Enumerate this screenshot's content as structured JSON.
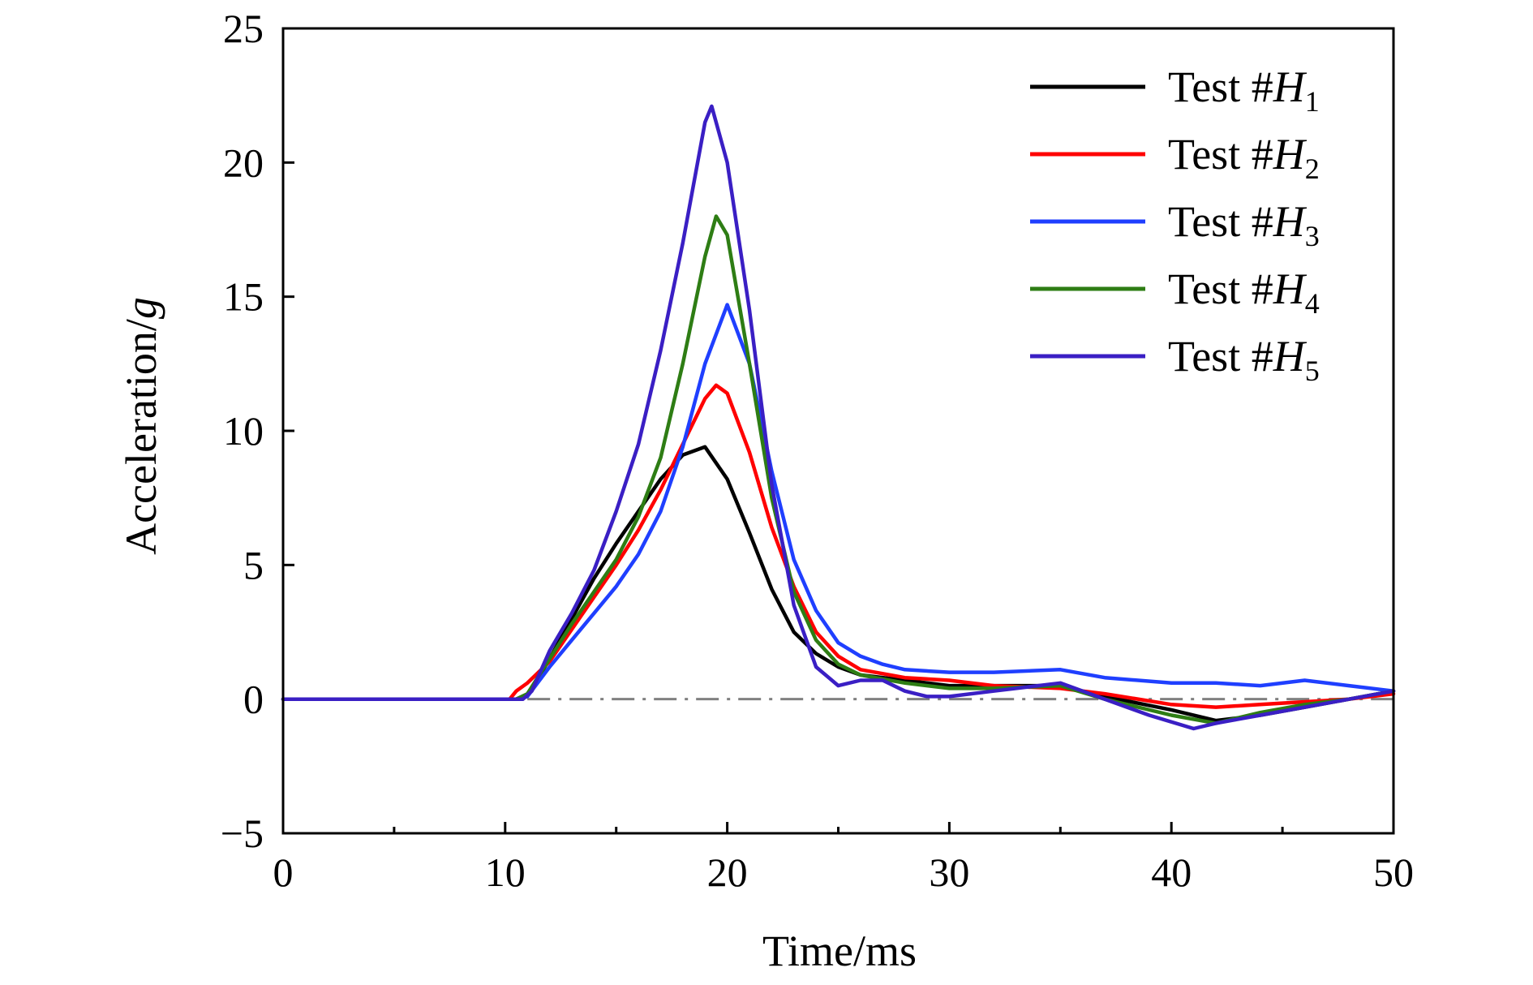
{
  "chart_data": {
    "type": "line",
    "title": "",
    "xlabel": "Time/ms",
    "ylabel_main": "Acceleration/",
    "ylabel_unit": "g",
    "xlim": [
      0,
      50
    ],
    "ylim": [
      -5,
      25
    ],
    "xticks": [
      0,
      10,
      20,
      30,
      40,
      50
    ],
    "yticks": [
      -5,
      0,
      5,
      10,
      15,
      20,
      25
    ],
    "xtick_labels": [
      "0",
      "10",
      "20",
      "30",
      "40",
      "50"
    ],
    "ytick_labels": [
      "−5",
      "0",
      "5",
      "10",
      "15",
      "20",
      "25"
    ],
    "grid": false,
    "legend_position": "top-right",
    "reference_line": {
      "y": 0,
      "style": "dash-dot",
      "color": "#808080",
      "x_start": 11
    },
    "series": [
      {
        "name_prefix": "Test #",
        "name_var": "H",
        "name_sub": "1",
        "color": "#000000",
        "x": [
          0,
          10.5,
          11,
          12,
          13,
          14,
          15,
          16,
          17,
          18,
          19,
          20,
          21,
          22,
          23,
          24,
          25,
          26,
          28,
          30,
          32,
          35,
          37,
          40,
          42,
          44,
          46,
          48,
          50
        ],
        "y": [
          0,
          0,
          0.1,
          1.5,
          3.0,
          4.5,
          5.8,
          7.0,
          8.2,
          9.1,
          9.4,
          8.2,
          6.2,
          4.1,
          2.5,
          1.7,
          1.2,
          0.9,
          0.7,
          0.5,
          0.5,
          0.5,
          0.1,
          -0.4,
          -0.8,
          -0.6,
          -0.3,
          0,
          0.3
        ]
      },
      {
        "name_prefix": "Test #",
        "name_var": "H",
        "name_sub": "2",
        "color": "#ff0000",
        "x": [
          0,
          10.2,
          10.5,
          11,
          12,
          13,
          14,
          15,
          16,
          17,
          18,
          19,
          19.5,
          20,
          21,
          22,
          23,
          24,
          25,
          26,
          28,
          30,
          32,
          35,
          37,
          40,
          42,
          44,
          46,
          48,
          50
        ],
        "y": [
          0,
          0,
          0.3,
          0.6,
          1.4,
          2.6,
          3.8,
          5.0,
          6.3,
          7.8,
          9.5,
          11.2,
          11.7,
          11.4,
          9.2,
          6.4,
          4.2,
          2.5,
          1.6,
          1.1,
          0.8,
          0.7,
          0.5,
          0.4,
          0.2,
          -0.2,
          -0.3,
          -0.2,
          -0.1,
          0,
          0.2
        ]
      },
      {
        "name_prefix": "Test #",
        "name_var": "H",
        "name_sub": "3",
        "color": "#1f3fff",
        "x": [
          0,
          10.5,
          11,
          12,
          13,
          14,
          15,
          16,
          17,
          18,
          19,
          20,
          21,
          22,
          23,
          24,
          25,
          26,
          27,
          28,
          30,
          32,
          35,
          37,
          40,
          42,
          44,
          46,
          48,
          50
        ],
        "y": [
          0,
          0,
          0.1,
          1.2,
          2.2,
          3.2,
          4.2,
          5.4,
          7.0,
          9.4,
          12.5,
          14.7,
          12.5,
          8.5,
          5.2,
          3.3,
          2.1,
          1.6,
          1.3,
          1.1,
          1.0,
          1.0,
          1.1,
          0.8,
          0.6,
          0.6,
          0.5,
          0.7,
          0.5,
          0.3
        ]
      },
      {
        "name_prefix": "Test #",
        "name_var": "H",
        "name_sub": "4",
        "color": "#2e7d14",
        "x": [
          0,
          10.5,
          11,
          12,
          13,
          14,
          15,
          16,
          17,
          18,
          19,
          19.5,
          20,
          21,
          22,
          23,
          24,
          25,
          26,
          28,
          30,
          32,
          35,
          37,
          40,
          42,
          44,
          46,
          48,
          50
        ],
        "y": [
          0,
          0,
          0.2,
          1.5,
          2.8,
          4.0,
          5.2,
          6.8,
          9.0,
          12.5,
          16.5,
          18.0,
          17.3,
          12.5,
          7.5,
          4.0,
          2.2,
          1.3,
          0.9,
          0.6,
          0.4,
          0.4,
          0.5,
          0,
          -0.6,
          -0.9,
          -0.5,
          -0.2,
          0,
          0.3
        ]
      },
      {
        "name_prefix": "Test #",
        "name_var": "H",
        "name_sub": "5",
        "color": "#3a1fc4",
        "x": [
          0,
          10.8,
          11.2,
          12,
          13,
          14,
          15,
          16,
          17,
          18,
          19,
          19.3,
          20,
          21,
          22,
          23,
          24,
          25,
          26,
          27,
          28,
          29,
          30,
          32,
          34,
          35,
          37,
          39,
          41,
          42,
          44,
          46,
          48,
          50
        ],
        "y": [
          0,
          0,
          0.3,
          1.8,
          3.2,
          4.8,
          7.0,
          9.5,
          13.0,
          17.0,
          21.5,
          22.1,
          20.0,
          14.5,
          8.0,
          3.5,
          1.2,
          0.5,
          0.7,
          0.7,
          0.3,
          0.1,
          0.1,
          0.3,
          0.5,
          0.6,
          0,
          -0.6,
          -1.1,
          -0.9,
          -0.6,
          -0.3,
          0,
          0.3
        ]
      }
    ]
  }
}
